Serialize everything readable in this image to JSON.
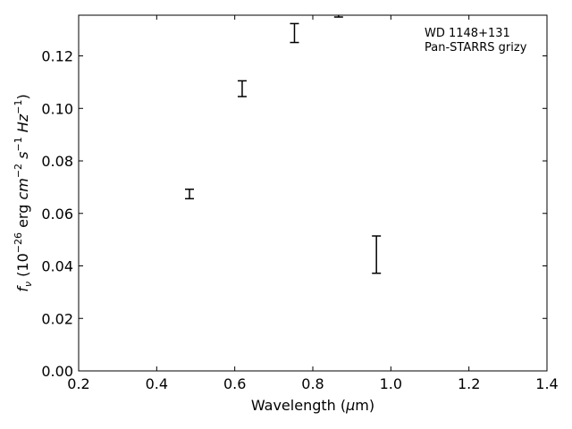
{
  "chart_data": {
    "type": "scatter",
    "xlabel": "Wavelength (μm)",
    "ylabel": "f_ν (10^-26 erg cm^-2 s^-1 Hz^-1)",
    "xlim": [
      0.2,
      1.4
    ],
    "ylim": [
      0.0,
      0.1355
    ],
    "xticks": [
      "0.2",
      "0.4",
      "0.6",
      "0.8",
      "1.0",
      "1.2",
      "1.4"
    ],
    "yticks": [
      "0.00",
      "0.02",
      "0.04",
      "0.06",
      "0.08",
      "0.10",
      "0.12"
    ],
    "grid": false,
    "legend_placement": "top-right",
    "annotation_lines": [
      "WD 1148+131",
      "Pan-STARRS grizy"
    ],
    "series": [
      {
        "bands": [
          "g",
          "r",
          "i",
          "z",
          "y"
        ],
        "x": [
          0.484,
          0.619,
          0.753,
          0.866,
          0.963
        ],
        "y": [
          0.0674,
          0.1075,
          0.1287,
          0.136,
          0.0443
        ],
        "yerr": [
          0.0018,
          0.003,
          0.0036,
          0.0012,
          0.0071
        ]
      }
    ]
  }
}
